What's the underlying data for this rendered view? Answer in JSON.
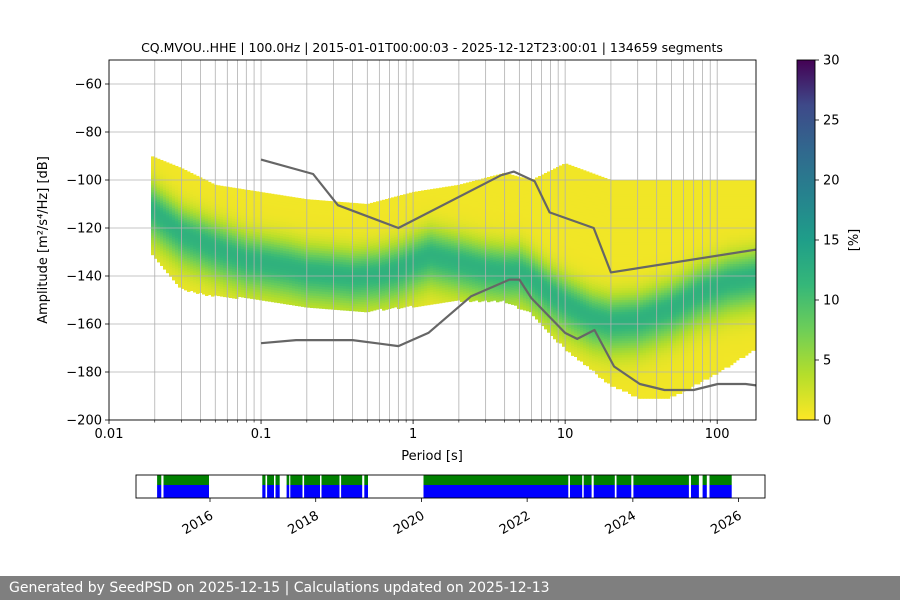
{
  "chart_data": [
    {
      "type": "heatmap",
      "title": "CQ.MVOU..HHE | 100.0Hz | 2015-01-01T00:00:03 - 2025-12-12T23:00:01 | 134659 segments",
      "xlabel": "Period [s]",
      "ylabel": "Amplitude [m²/s⁴/Hz] [dB]",
      "x_scale": "log",
      "xlim": [
        0.01,
        180
      ],
      "ylim": [
        -200,
        -50
      ],
      "x_ticks": [
        0.01,
        0.1,
        1,
        10,
        100
      ],
      "x_tick_labels": [
        "0.01",
        "0.1",
        "1",
        "10",
        "100"
      ],
      "y_ticks": [
        -200,
        -180,
        -160,
        -140,
        -120,
        -100,
        -80,
        -60
      ],
      "y_tick_labels": [
        "−200",
        "−180",
        "−160",
        "−140",
        "−120",
        "−100",
        "−80",
        "−60"
      ],
      "grid": true,
      "colormap": "viridis_r",
      "colorbar": {
        "label": "[%]",
        "range": [
          0,
          30
        ],
        "ticks": [
          0,
          5,
          10,
          15,
          20,
          25,
          30
        ],
        "tick_labels": [
          "0",
          "5",
          "10",
          "15",
          "20",
          "25",
          "30"
        ]
      },
      "ppsd": {
        "period_range": [
          0.019,
          180
        ],
        "mode_curve": [
          [
            0.019,
            -112
          ],
          [
            0.025,
            -118
          ],
          [
            0.03,
            -122
          ],
          [
            0.05,
            -128
          ],
          [
            0.08,
            -133
          ],
          [
            0.1,
            -134
          ],
          [
            0.15,
            -136
          ],
          [
            0.2,
            -138
          ],
          [
            0.3,
            -139
          ],
          [
            0.4,
            -140
          ],
          [
            0.6,
            -139
          ],
          [
            0.8,
            -137
          ],
          [
            1,
            -134
          ],
          [
            1.3,
            -131
          ],
          [
            2,
            -134
          ],
          [
            3,
            -137
          ],
          [
            4,
            -138
          ],
          [
            5,
            -138
          ],
          [
            6,
            -141
          ],
          [
            8,
            -147
          ],
          [
            10,
            -151
          ],
          [
            15,
            -157
          ],
          [
            20,
            -159
          ],
          [
            30,
            -158
          ],
          [
            50,
            -153
          ],
          [
            80,
            -146
          ],
          [
            120,
            -142
          ],
          [
            180,
            -140
          ]
        ],
        "bounds_upper": [
          [
            0.019,
            -90
          ],
          [
            0.03,
            -95
          ],
          [
            0.05,
            -102
          ],
          [
            0.1,
            -105
          ],
          [
            0.2,
            -108
          ],
          [
            0.5,
            -110
          ],
          [
            1,
            -105
          ],
          [
            2,
            -102
          ],
          [
            4,
            -97
          ],
          [
            6,
            -100
          ],
          [
            10,
            -93
          ],
          [
            20,
            -100
          ],
          [
            50,
            -100
          ],
          [
            100,
            -100
          ],
          [
            180,
            -100
          ]
        ],
        "bounds_lower": [
          [
            0.019,
            -130
          ],
          [
            0.03,
            -145
          ],
          [
            0.05,
            -148
          ],
          [
            0.1,
            -149
          ],
          [
            0.2,
            -152
          ],
          [
            0.5,
            -154
          ],
          [
            1,
            -152
          ],
          [
            2,
            -150
          ],
          [
            4,
            -150
          ],
          [
            6,
            -155
          ],
          [
            10,
            -170
          ],
          [
            20,
            -185
          ],
          [
            30,
            -190
          ],
          [
            50,
            -190
          ],
          [
            100,
            -180
          ],
          [
            180,
            -170
          ]
        ]
      },
      "series": [
        {
          "x": [
            0.1,
            0.17,
            0.4,
            0.8,
            1.26,
            2.4,
            4.3,
            5.0,
            6.0,
            10.0,
            12.0,
            15.6,
            21.0,
            31.0,
            45.0,
            70.0,
            101.0,
            154.0,
            180.0
          ],
          "y": [
            -168,
            -166.7,
            -166.7,
            -169.2,
            -163.7,
            -148.5,
            -141.5,
            -141.5,
            -149.2,
            -163.7,
            -166.2,
            -162.5,
            -177.7,
            -185.0,
            -187.5,
            -187.5,
            -185.0,
            -185.0,
            -185.6
          ]
        },
        {
          "x": [
            0.1,
            0.22,
            0.32,
            0.8,
            3.8,
            4.6,
            6.3,
            7.9,
            15.4,
            20.0,
            180.0
          ],
          "y": [
            -91.5,
            -97.5,
            -110.5,
            -120.0,
            -98.0,
            -96.5,
            -100.5,
            -113.5,
            -120.0,
            -138.5,
            -129.0
          ]
        }
      ]
    },
    {
      "type": "bar",
      "xlabel": "",
      "ylabel": "",
      "x_tick_labels": [
        "2016",
        "2018",
        "2020",
        "2022",
        "2024",
        "2026"
      ],
      "x_ticks": [
        2016,
        2018,
        2020,
        2022,
        2024,
        2026
      ],
      "xlim": [
        2014.6,
        2026.5
      ],
      "colors": {
        "top": "#008000",
        "bottom": "#0000ff"
      },
      "coverage_intervals": [
        [
          2015.0,
          2015.08
        ],
        [
          2015.12,
          2015.98
        ],
        [
          2016.99,
          2017.05
        ],
        [
          2017.08,
          2017.21
        ],
        [
          2017.24,
          2017.32
        ],
        [
          2017.45,
          2017.5
        ],
        [
          2017.52,
          2017.75
        ],
        [
          2017.78,
          2018.08
        ],
        [
          2018.11,
          2018.45
        ],
        [
          2018.48,
          2018.88
        ],
        [
          2018.92,
          2018.99
        ],
        [
          2020.04,
          2022.78
        ],
        [
          2022.81,
          2023.04
        ],
        [
          2023.07,
          2023.22
        ],
        [
          2023.26,
          2023.66
        ],
        [
          2023.69,
          2023.97
        ],
        [
          2024.01,
          2025.06
        ],
        [
          2025.1,
          2025.25
        ],
        [
          2025.32,
          2025.4
        ],
        [
          2025.45,
          2025.87
        ]
      ]
    }
  ],
  "footer": {
    "text": "Generated by SeedPSD on 2025-12-15 | Calculations updated on 2025-12-13"
  }
}
